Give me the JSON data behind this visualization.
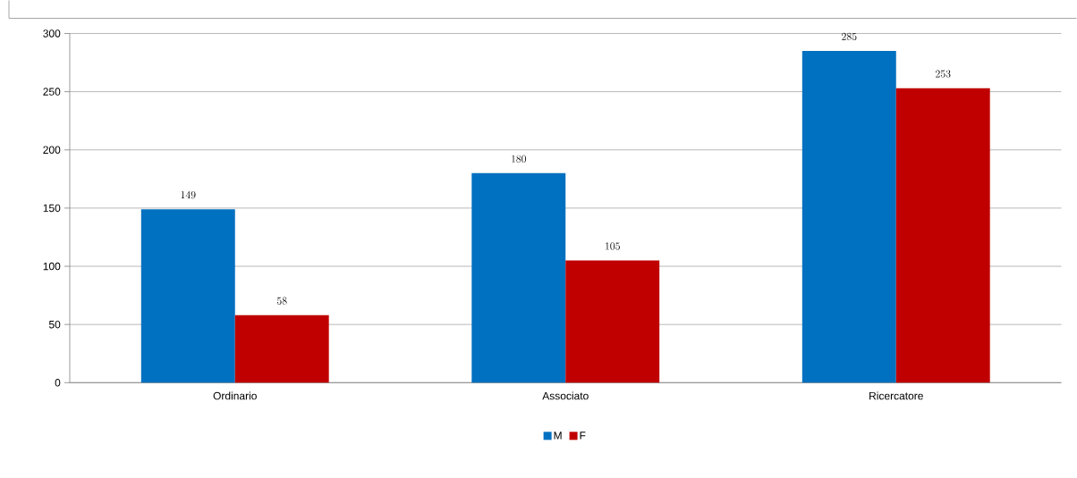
{
  "chart_data": {
    "type": "bar",
    "categories": [
      "Ordinario",
      "Associato",
      "Ricercatore"
    ],
    "series": [
      {
        "name": "M",
        "color": "#0070c0",
        "values": [
          149,
          180,
          285
        ]
      },
      {
        "name": "F",
        "color": "#c00000",
        "values": [
          58,
          105,
          253
        ]
      }
    ],
    "ylim": [
      0,
      300
    ],
    "yticks": [
      0,
      50,
      100,
      150,
      200,
      250,
      300
    ],
    "grid": "y",
    "legend": "bottom",
    "data_labels": true
  }
}
